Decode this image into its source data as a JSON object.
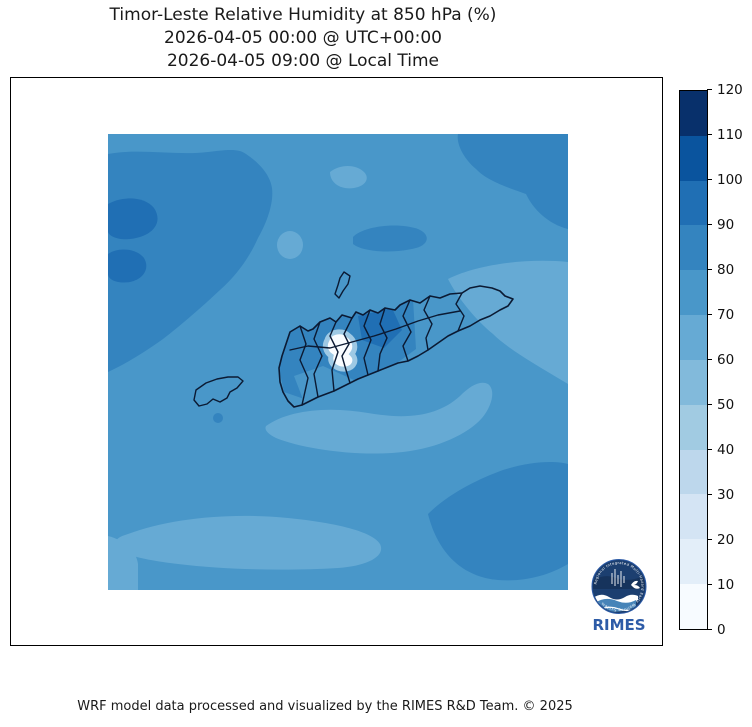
{
  "title": {
    "line1": "Timor-Leste Relative Humidity at 850 hPa (%)",
    "line2": "2026-04-05 00:00 @ UTC+00:00",
    "line3": "2026-04-05 09:00 @ Local Time"
  },
  "footer": {
    "credit": "WRF model data processed and visualized by the RIMES R&D Team. © 2025"
  },
  "palette": {
    "lv0": "#f9fcff",
    "lv60": "#66aad4",
    "lv70": "#4997c9",
    "lv80": "#3484bf",
    "lv90": "#206fb4",
    "halo": "#9ec9e4"
  },
  "colorbar": {
    "min": 0,
    "max": 120,
    "tick_step": 10,
    "ticks": [
      0,
      10,
      20,
      30,
      40,
      50,
      60,
      70,
      80,
      90,
      100,
      110,
      120
    ],
    "levels": [
      {
        "from": 0,
        "to": 10,
        "color": "#f7fbff"
      },
      {
        "from": 10,
        "to": 20,
        "color": "#e3eef9"
      },
      {
        "from": 20,
        "to": 30,
        "color": "#d4e4f4"
      },
      {
        "from": 30,
        "to": 40,
        "color": "#bdd7ec"
      },
      {
        "from": 40,
        "to": 50,
        "color": "#a1cbe2"
      },
      {
        "from": 50,
        "to": 60,
        "color": "#82badb"
      },
      {
        "from": 60,
        "to": 70,
        "color": "#66aad4"
      },
      {
        "from": 70,
        "to": 80,
        "color": "#4997c9"
      },
      {
        "from": 80,
        "to": 90,
        "color": "#3484bf"
      },
      {
        "from": 90,
        "to": 100,
        "color": "#206fb4"
      },
      {
        "from": 100,
        "to": 110,
        "color": "#0a549e"
      },
      {
        "from": 110,
        "to": 120,
        "color": "#08306b"
      }
    ]
  },
  "logo": {
    "text": "RIMES",
    "ring_text": "Regional Integrated Multi-Hazard Early Warning System",
    "circle_color": "#1c3f70",
    "text_color": "#2d5ba7"
  },
  "chart_data": {
    "type": "heatmap",
    "subtype": "filled-contour-map",
    "title": "Timor-Leste Relative Humidity at 850 hPa (%)",
    "valid_time_utc": "2026-04-05 00:00 @ UTC+00:00",
    "valid_time_local": "2026-04-05 09:00 @ Local Time",
    "variable": "Relative Humidity",
    "pressure_level": "850 hPa",
    "units": "%",
    "colormap": "Blues, discrete 12 levels",
    "colorbar_range": [
      0,
      120
    ],
    "colorbar_tick_step": 10,
    "legend_position": "right",
    "regions": [
      {
        "area": "northwest quadrant of domain (ocean NW of Timor)",
        "value_range": "80-90"
      },
      {
        "area": "two small patches at far west edge of domain",
        "value_range": "90-100"
      },
      {
        "area": "general background over most of domain",
        "value_range": "70-80"
      },
      {
        "area": "small kidney-shaped and round spots north of the island",
        "value_range": "60-70"
      },
      {
        "area": "large area east and northeast of the eastern tip of Timor",
        "value_range": "60-70"
      },
      {
        "area": "band south of Timor island",
        "value_range": "60-70"
      },
      {
        "area": "large lobe near bottom-left / bottom-center of domain",
        "value_range": "60-70"
      },
      {
        "area": "large blob at southeast (bottom-right) of domain",
        "value_range": "80-90"
      },
      {
        "area": "west-central Timor-Leste districts",
        "value_range": "80-90"
      },
      {
        "area": "district area northeast of the white minimum",
        "value_range": "90-100"
      },
      {
        "area": "small white minimum spot in west-central highlands",
        "value_range": "0-10"
      }
    ],
    "overlays": [
      "Timor island coastline with municipality boundaries",
      "Atauro island outline north of Dili",
      "Oecusse enclave outline to the west"
    ]
  }
}
